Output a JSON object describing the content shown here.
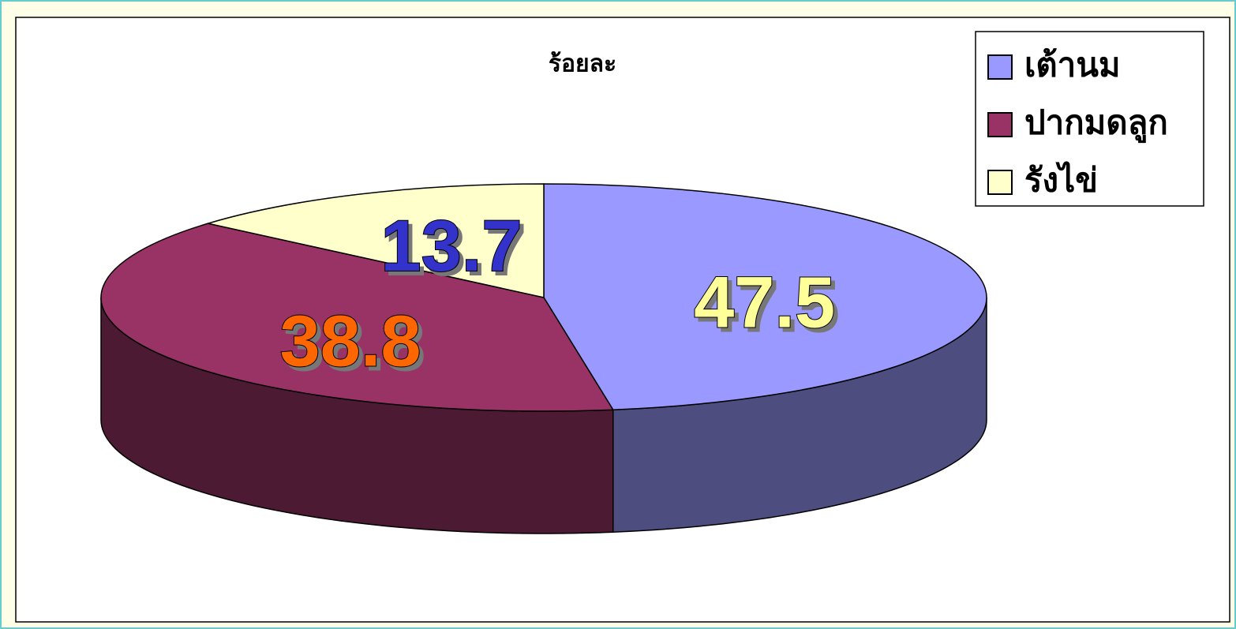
{
  "chart_data": {
    "type": "pie3d",
    "title": "ร้อยละ",
    "categories": [
      "เต้านม",
      "ปากมดลูก",
      "รังไข่"
    ],
    "values": [
      47.5,
      38.8,
      13.7
    ],
    "colors": [
      "#9999ff",
      "#993366",
      "#ffffcc"
    ],
    "label_colors": [
      "#ffff99",
      "#ff6600",
      "#3333cc"
    ],
    "legend": "top-right"
  }
}
